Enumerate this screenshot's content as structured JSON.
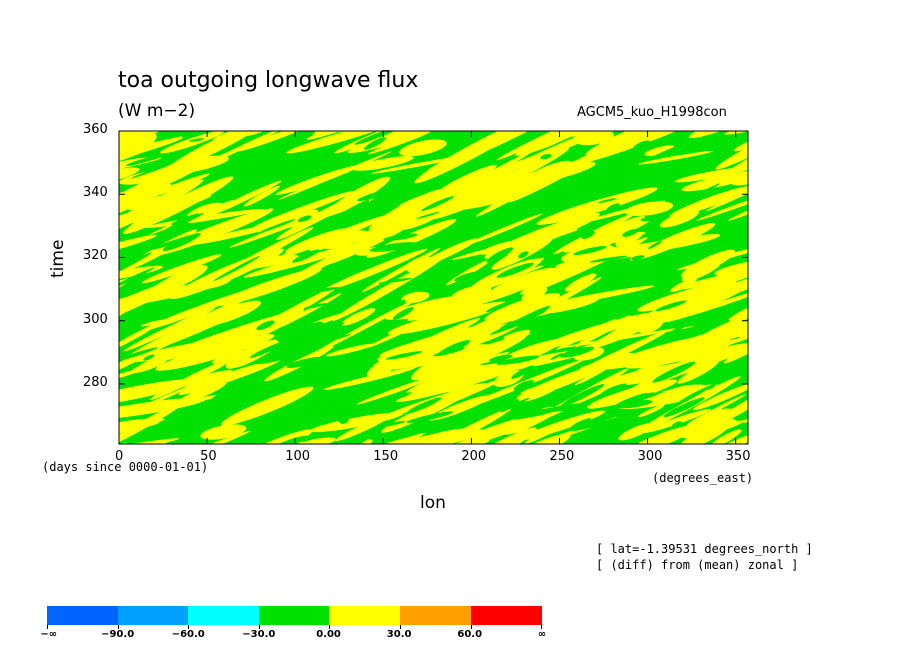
{
  "header": {
    "title": "toa outgoing longwave flux",
    "units": "(W m−2)",
    "dataset": "AGCM5_kuo_H1998con"
  },
  "notes": {
    "lat": "[ lat=-1.39531 degrees_north ]",
    "diff": "[ (diff) from (mean) zonal ]"
  },
  "chart_data": {
    "type": "heatmap",
    "title": "toa outgoing longwave flux",
    "subtitle": "(W m−2)",
    "xlabel": "lon",
    "x_units": "(degrees_east)",
    "ylabel": "time",
    "y_units": "(days since 0000-01-01)",
    "xlim": [
      0,
      357
    ],
    "ylim": [
      261,
      360
    ],
    "x_ticks": [
      0,
      50,
      100,
      150,
      200,
      250,
      300,
      350
    ],
    "y_ticks": [
      280,
      300,
      320,
      340,
      360
    ],
    "grid": false,
    "pattern": "eastward-propagating streaks of positive (yellow) and negative (green) anomalies; scattered small negative patches (dark green)",
    "color_levels": {
      "bounds": [
        "−∞",
        "−90.0",
        "−60.0",
        "−30.0",
        "0.00",
        "30.0",
        "60.0",
        "∞"
      ],
      "colors": [
        "#0064ff",
        "#00a0ff",
        "#00ffff",
        "#00e100",
        "#ffff00",
        "#ffa000",
        "#ff0000"
      ]
    }
  }
}
